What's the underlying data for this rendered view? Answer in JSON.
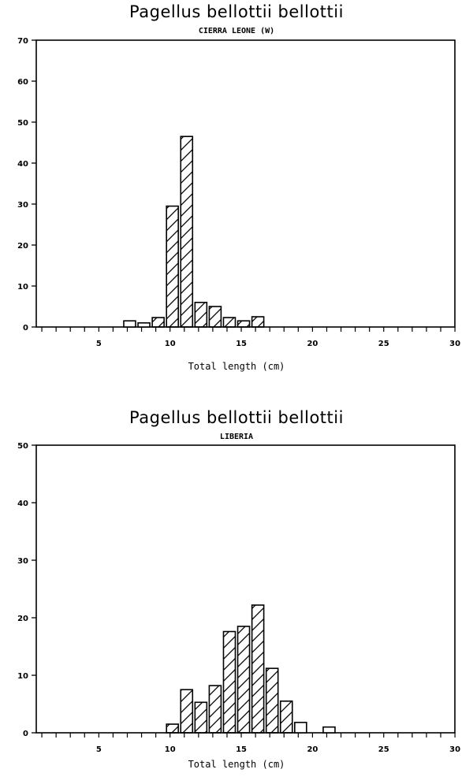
{
  "chart_data": [
    {
      "type": "bar",
      "title": "Pagellus bellottii bellottii",
      "subtitle": "CIERRA LEONE (W)",
      "xlabel": "Total length (cm)",
      "ylabel": "",
      "xlim": [
        0.6,
        30
      ],
      "ylim": [
        0,
        70
      ],
      "yticks": [
        0,
        10,
        20,
        30,
        40,
        50,
        60,
        70
      ],
      "xticks": [
        5,
        10,
        15,
        20,
        25,
        30
      ],
      "grid": false,
      "legend": null,
      "categories": [
        7,
        8,
        9,
        10,
        11,
        12,
        13,
        14,
        15,
        16
      ],
      "values": [
        1.5,
        1.0,
        2.3,
        29.5,
        46.5,
        6.0,
        5.0,
        2.3,
        1.5,
        2.5
      ],
      "hatched": [
        false,
        false,
        true,
        true,
        true,
        true,
        true,
        true,
        true,
        true
      ]
    },
    {
      "type": "bar",
      "title": "Pagellus bellottii bellottii",
      "subtitle": "LIBERIA",
      "xlabel": "Total length (cm)",
      "ylabel": "",
      "xlim": [
        0.6,
        30
      ],
      "ylim": [
        0,
        50
      ],
      "yticks": [
        0,
        10,
        20,
        30,
        40,
        50
      ],
      "xticks": [
        5,
        10,
        15,
        20,
        25,
        30
      ],
      "grid": false,
      "legend": null,
      "categories": [
        10,
        11,
        12,
        13,
        14,
        15,
        16,
        17,
        18,
        19,
        21
      ],
      "values": [
        1.5,
        7.5,
        5.3,
        8.2,
        17.6,
        18.5,
        22.2,
        11.2,
        5.5,
        1.8,
        1.0
      ],
      "hatched": [
        true,
        true,
        true,
        true,
        true,
        true,
        true,
        true,
        true,
        false,
        false
      ]
    }
  ]
}
